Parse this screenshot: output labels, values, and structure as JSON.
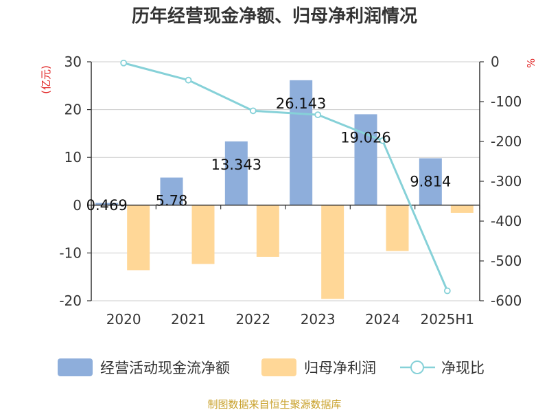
{
  "title": "历年经营现金净额、归母净利润情况",
  "source_text": "制图数据来自恒生聚源数据库",
  "colors": {
    "cash_flow": "#8eaedb",
    "net_profit": "#ffd797",
    "ratio": "#86d1d8",
    "unit": "#e02020",
    "source": "#c8a02a",
    "grid": "#cccccc",
    "axis": "#333333"
  },
  "chart_data": {
    "type": "bar",
    "title": "历年经营现金净额、归母净利润情况",
    "categories": [
      "2020",
      "2021",
      "2022",
      "2023",
      "2024",
      "2025H1"
    ],
    "y_left": {
      "unit": "(亿元)",
      "range": [
        -20,
        30
      ],
      "ticks": [
        "30",
        "20",
        "10",
        "0",
        "-10",
        "-20"
      ],
      "tick_values": [
        30,
        20,
        10,
        0,
        -10,
        -20
      ]
    },
    "y_right": {
      "unit": "%",
      "range": [
        -600,
        0
      ],
      "ticks": [
        "0",
        "-100",
        "-200",
        "-300",
        "-400",
        "-500",
        "-600"
      ],
      "tick_values": [
        0,
        -100,
        -200,
        -300,
        -400,
        -500,
        -600
      ]
    },
    "grid": true,
    "legend_position": "bottom",
    "series": [
      {
        "name": "经营活动现金流净额",
        "type": "bar",
        "axis": "left",
        "values": [
          0.469,
          5.78,
          13.343,
          26.143,
          19.026,
          9.814
        ],
        "labels": [
          "0.469",
          "5.78",
          "13.343",
          "26.143",
          "19.026",
          "9.814"
        ]
      },
      {
        "name": "归母净利润",
        "type": "bar",
        "axis": "left",
        "values": [
          -13.6,
          -12.3,
          -10.8,
          -19.6,
          -9.6,
          -1.6
        ]
      },
      {
        "name": "净现比",
        "type": "line",
        "axis": "right",
        "values": [
          -3,
          -46,
          -123,
          -133,
          -198,
          -575
        ]
      }
    ]
  }
}
